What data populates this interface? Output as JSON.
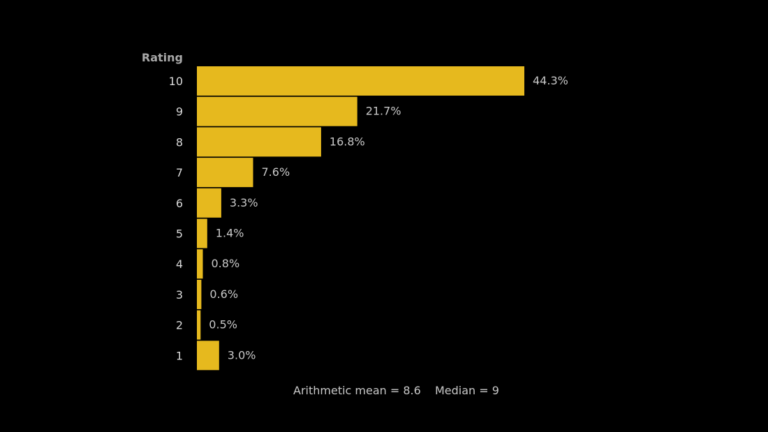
{
  "chart_data": {
    "type": "bar",
    "orientation": "horizontal",
    "ylabel": "Rating",
    "categories": [
      "10",
      "9",
      "8",
      "7",
      "6",
      "5",
      "4",
      "3",
      "2",
      "1"
    ],
    "values": [
      44.3,
      21.7,
      16.8,
      7.6,
      3.3,
      1.4,
      0.8,
      0.6,
      0.5,
      3.0
    ],
    "value_labels": [
      "44.3%",
      "21.7%",
      "16.8%",
      "7.6%",
      "3.3%",
      "1.4%",
      "0.8%",
      "0.6%",
      "0.5%",
      "3.0%"
    ],
    "xlim": [
      0,
      100
    ],
    "grid": false,
    "legend": "none",
    "colors": {
      "bar": "#E6B91E",
      "background": "#000000",
      "tick_text": "#D8D8D8",
      "label_text": "#C8C8C8",
      "axis_title": "#A8A8A8"
    }
  },
  "stats": {
    "mean_text": "Arithmetic mean = 8.6",
    "median_text": "Median = 9"
  }
}
